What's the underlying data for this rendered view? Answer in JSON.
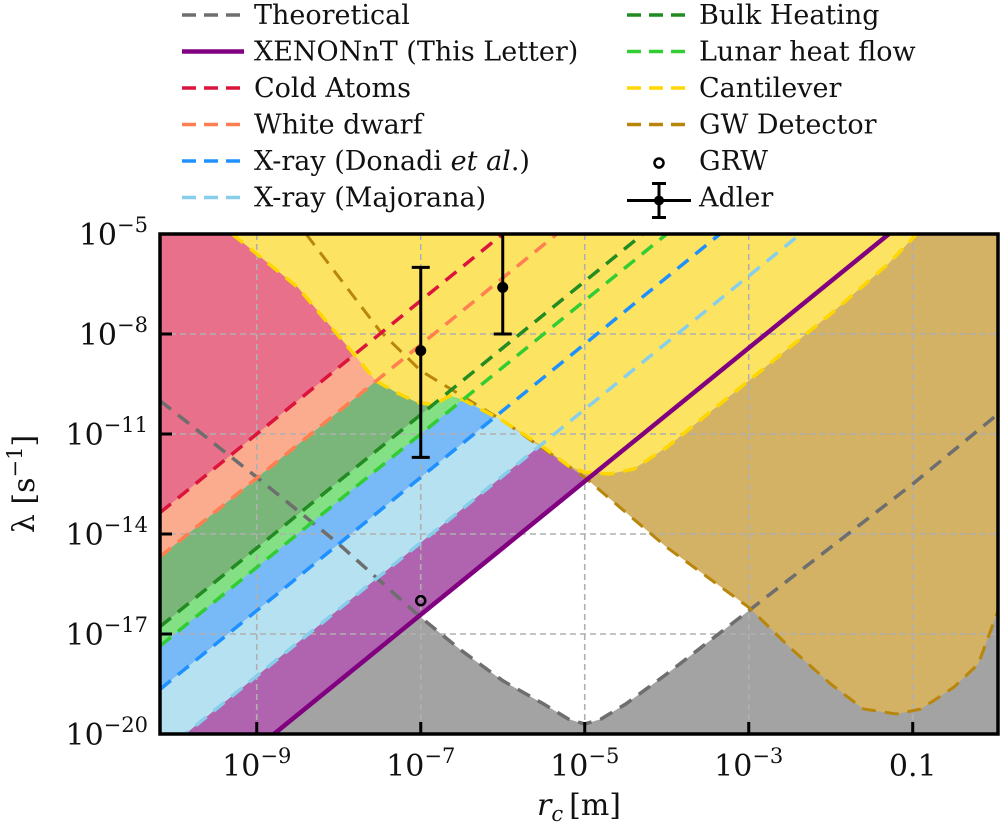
{
  "chart_data": {
    "type": "area",
    "title": "",
    "xlabel": "r_c [m]",
    "xlabel_main": "r",
    "xlabel_sub": "c",
    "xlabel_unit": "[m]",
    "ylabel": "λ [s⁻¹]",
    "ylabel_main": "λ [s",
    "ylabel_sup": "−1",
    "ylabel_end": "]",
    "xscale": "log",
    "yscale": "log",
    "xlim_log10": [
      -10.18,
      0.04
    ],
    "ylim_log10": [
      -20,
      -5
    ],
    "grid": true,
    "legend_position": "top (outside, two columns)",
    "x_ticks": [
      {
        "log10": -9,
        "base": "10",
        "exp": "−9"
      },
      {
        "log10": -7,
        "base": "10",
        "exp": "−7"
      },
      {
        "log10": -5,
        "base": "10",
        "exp": "−5"
      },
      {
        "log10": -3,
        "base": "10",
        "exp": "−3"
      },
      {
        "log10": -1,
        "base": "0.1",
        "exp": ""
      }
    ],
    "y_ticks": [
      {
        "log10": -5,
        "base": "10",
        "exp": "−5"
      },
      {
        "log10": -8,
        "base": "10",
        "exp": "−8"
      },
      {
        "log10": -11,
        "base": "10",
        "exp": "−11"
      },
      {
        "log10": -14,
        "base": "10",
        "exp": "−14"
      },
      {
        "log10": -17,
        "base": "10",
        "exp": "−17"
      },
      {
        "log10": -20,
        "base": "10",
        "exp": "−20"
      }
    ],
    "series": [
      {
        "name": "Theoretical",
        "style": "dashed",
        "color": "#6e6e6e",
        "fill": "#a3a3a3",
        "points_log10": [
          [
            -10.18,
            -10.0
          ],
          [
            -9,
            -12.3
          ],
          [
            -8,
            -14.3
          ],
          [
            -7,
            -16.5
          ],
          [
            -6.5,
            -17.5
          ],
          [
            -6,
            -18.4
          ],
          [
            -5.5,
            -19.1
          ],
          [
            -5.2,
            -19.55
          ],
          [
            -5,
            -19.7
          ],
          [
            -4.8,
            -19.55
          ],
          [
            -4.5,
            -19.1
          ],
          [
            -4,
            -18.2
          ],
          [
            -3,
            -16.3
          ],
          [
            -2,
            -14.4
          ],
          [
            -1,
            -12.5
          ],
          [
            0.04,
            -10.4
          ]
        ]
      },
      {
        "name": "XENONnT (This Letter)",
        "style": "solid",
        "color": "#800080",
        "fill": "#b064b0",
        "line": {
          "slope": 2,
          "log10_x_at_top": -1.29
        }
      },
      {
        "name": "Cold Atoms",
        "style": "dashed",
        "color": "#dc143c",
        "fill": "#e8708a",
        "line": {
          "slope": 2,
          "log10_x_at_top": -6.0
        }
      },
      {
        "name": "White dwarf",
        "style": "dashed",
        "color": "#ff7f50",
        "fill": "#fbac8f",
        "line": {
          "slope": 2,
          "log10_x_at_top": -5.34
        }
      },
      {
        "name": "X-ray (Donadi et al.)",
        "style": "dashed",
        "color": "#1e90ff",
        "fill": "#78b9f8",
        "line": {
          "slope": 2,
          "log10_x_at_top": -3.35
        }
      },
      {
        "name": "X-ray (Majorana)",
        "style": "dashed",
        "color": "#87ceeb",
        "fill": "#b5e1f1",
        "line": {
          "slope": 2,
          "log10_x_at_top": -2.37
        }
      },
      {
        "name": "Bulk Heating",
        "style": "dashed",
        "color": "#228b22",
        "fill": "#7ab67a",
        "line": {
          "slope": 2,
          "log10_x_at_top": -4.29
        }
      },
      {
        "name": "Lunar heat flow",
        "style": "dashed",
        "color": "#32cd32",
        "fill": "#84e084",
        "line": {
          "slope": 2,
          "log10_x_at_top": -4.0
        }
      },
      {
        "name": "Cantilever",
        "style": "dashed",
        "color": "#ffd700",
        "fill": "#fde362",
        "points_log10": [
          [
            -9.3,
            -5.0
          ],
          [
            -8.5,
            -6.6
          ],
          [
            -7.85,
            -8.5
          ],
          [
            -7.55,
            -9.4
          ],
          [
            -7.3,
            -9.75
          ],
          [
            -7.05,
            -10.05
          ],
          [
            -6.85,
            -10.12
          ],
          [
            -6.75,
            -10.0
          ],
          [
            -6.65,
            -9.85
          ],
          [
            -6.5,
            -9.95
          ],
          [
            -6.0,
            -10.6
          ],
          [
            -5.5,
            -11.4
          ],
          [
            -5.2,
            -11.95
          ],
          [
            -5.0,
            -12.15
          ],
          [
            -4.7,
            -12.2
          ],
          [
            -4.4,
            -12.05
          ],
          [
            -4.0,
            -11.4
          ],
          [
            -3.0,
            -9.4
          ],
          [
            -2.0,
            -7.4
          ],
          [
            -1.3,
            -5.9
          ],
          [
            -0.95,
            -5.0
          ]
        ]
      },
      {
        "name": "GW Detector",
        "style": "dashed",
        "color": "#b8860b",
        "fill": "#d3b266",
        "points_log10": [
          [
            -8.4,
            -5.0
          ],
          [
            -7.5,
            -7.9
          ],
          [
            -7.0,
            -9.1
          ],
          [
            -6.0,
            -10.6
          ],
          [
            -5.0,
            -12.3
          ],
          [
            -4.0,
            -14.4
          ],
          [
            -3.0,
            -16.2
          ],
          [
            -2.5,
            -17.4
          ],
          [
            -2.0,
            -18.5
          ],
          [
            -1.6,
            -19.25
          ],
          [
            -1.2,
            -19.4
          ],
          [
            -0.9,
            -19.25
          ],
          [
            -0.5,
            -18.6
          ],
          [
            -0.2,
            -17.9
          ],
          [
            0.04,
            -16.3
          ],
          [
            0.04,
            -5.0
          ]
        ]
      },
      {
        "name": "GRW",
        "style": "marker-open-circle",
        "color": "#000000",
        "points_log10": [
          [
            -7.0,
            -16.0
          ]
        ]
      },
      {
        "name": "Adler",
        "style": "errorbar",
        "color": "#000000",
        "points_log10": [
          {
            "x": -7.0,
            "y": -8.5,
            "ylow": -11.7,
            "yhigh": -6.0
          },
          {
            "x": -6.0,
            "y": -6.6,
            "ylow": -8.0,
            "yhigh": -5.0
          }
        ]
      }
    ]
  }
}
